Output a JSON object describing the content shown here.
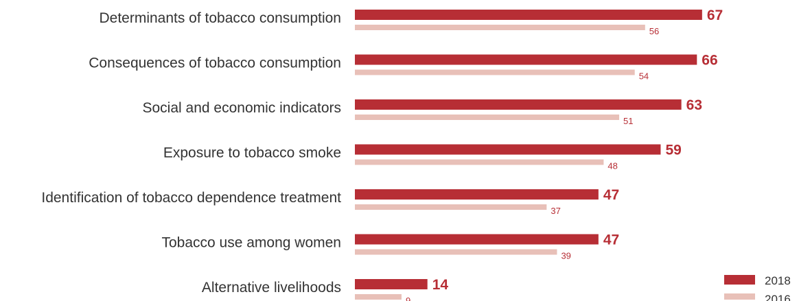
{
  "chart_data": {
    "type": "bar",
    "orientation": "horizontal",
    "title": "",
    "xlabel": "",
    "ylabel": "",
    "xlim": [
      0,
      100
    ],
    "grid": false,
    "legend_position": "bottom-right",
    "categories": [
      "Determinants of tobacco consumption",
      "Consequences of tobacco consumption",
      "Social and economic indicators",
      "Exposure to tobacco smoke",
      "Identification of tobacco dependence treatment",
      "Tobacco use among women",
      "Alternative livelihoods"
    ],
    "series": [
      {
        "name": "2018",
        "color": "#b72e35",
        "values": [
          67,
          66,
          63,
          59,
          47,
          47,
          14
        ]
      },
      {
        "name": "2016",
        "color": "#e8c0b8",
        "values": [
          56,
          54,
          51,
          48,
          37,
          39,
          9
        ]
      }
    ],
    "value_label_color": "#b72e35"
  }
}
